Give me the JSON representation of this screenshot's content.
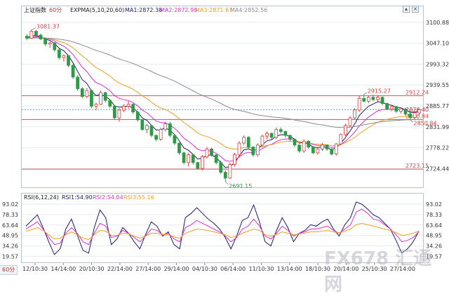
{
  "header": {
    "symbol": "上证指数",
    "period": "60分",
    "indicator": "EXPMA(5,10,20,60)",
    "ma1": "MA1:2872.38",
    "ma2": "MA2:2872.98",
    "ma3": "MA3:2871.67",
    "ma4": "MA4:2852.56"
  },
  "rsi_header": {
    "indicator": "RSI(6,12,24)",
    "rsi1": "RSI1:54.90",
    "rsi2": "RSI2:54.04",
    "rsi3": "RSI3:55.16"
  },
  "period_button": "60分",
  "watermark": "FX678 汇通网",
  "colors": {
    "up": "#e03c3c",
    "down": "#2f9a46",
    "ma1": "#1a1a6e",
    "ma2": "#e02fd0",
    "ma3": "#f0a020",
    "ma4": "#8c8c8c",
    "hline": "#e04848",
    "current": "#5a9bd8"
  },
  "chart_data": [
    {
      "type": "candlestick",
      "title": "上证指数",
      "ylim": [
        2680,
        3115
      ],
      "y_ticks": [
        "3100.88",
        "3047.10",
        "2993.32",
        "2939.55",
        "2885.77",
        "2831.99",
        "2778.22",
        "2724.44"
      ],
      "x_ticks": [
        "12/10:30",
        "14/14:00",
        "20/10:30",
        "22/14:00",
        "27/14:00",
        "29/14:00",
        "04/10:30",
        "06/14:00",
        "11/10:30",
        "13/14:00",
        "18/10:30",
        "20/14:00",
        "25/10:30",
        "27/14:00"
      ],
      "horizontal_lines": [
        {
          "label": "2912.24",
          "value": 2912.24
        },
        {
          "label": "2850.84",
          "value": 2850.84
        },
        {
          "label": "2723.15",
          "value": 2723.15
        }
      ],
      "current_price": {
        "label": "2876.40",
        "value": 2876.4
      },
      "annotations": [
        {
          "label": "3081.37",
          "value": 3081.37
        },
        {
          "label": "2691.15",
          "value": 2691.15
        },
        {
          "label": "2915.27",
          "value": 2915.27
        },
        {
          "label": "2850.84",
          "value": 2850.84
        }
      ],
      "candles": [
        {
          "o": 3065,
          "h": 3070,
          "l": 3055,
          "c": 3060
        },
        {
          "o": 3060,
          "h": 3082,
          "l": 3058,
          "c": 3078
        },
        {
          "o": 3078,
          "h": 3081,
          "l": 3065,
          "c": 3068
        },
        {
          "o": 3068,
          "h": 3072,
          "l": 3055,
          "c": 3058
        },
        {
          "o": 3058,
          "h": 3062,
          "l": 3040,
          "c": 3045
        },
        {
          "o": 3045,
          "h": 3052,
          "l": 3035,
          "c": 3048
        },
        {
          "o": 3048,
          "h": 3050,
          "l": 3025,
          "c": 3030
        },
        {
          "o": 3030,
          "h": 3034,
          "l": 3005,
          "c": 3010
        },
        {
          "o": 3010,
          "h": 3018,
          "l": 3000,
          "c": 3015
        },
        {
          "o": 3015,
          "h": 3017,
          "l": 2985,
          "c": 2990
        },
        {
          "o": 2990,
          "h": 2994,
          "l": 2955,
          "c": 2960
        },
        {
          "o": 2960,
          "h": 2965,
          "l": 2925,
          "c": 2930
        },
        {
          "o": 2930,
          "h": 2934,
          "l": 2905,
          "c": 2910
        },
        {
          "o": 2910,
          "h": 2932,
          "l": 2906,
          "c": 2925
        },
        {
          "o": 2925,
          "h": 2928,
          "l": 2880,
          "c": 2885
        },
        {
          "o": 2885,
          "h": 2894,
          "l": 2875,
          "c": 2890
        },
        {
          "o": 2890,
          "h": 2925,
          "l": 2888,
          "c": 2920
        },
        {
          "o": 2920,
          "h": 2922,
          "l": 2895,
          "c": 2900
        },
        {
          "o": 2900,
          "h": 2902,
          "l": 2880,
          "c": 2885
        },
        {
          "o": 2885,
          "h": 2887,
          "l": 2850,
          "c": 2855
        },
        {
          "o": 2855,
          "h": 2880,
          "l": 2845,
          "c": 2875
        },
        {
          "o": 2875,
          "h": 2890,
          "l": 2870,
          "c": 2885
        },
        {
          "o": 2885,
          "h": 2898,
          "l": 2878,
          "c": 2890
        },
        {
          "o": 2890,
          "h": 2892,
          "l": 2865,
          "c": 2870
        },
        {
          "o": 2870,
          "h": 2872,
          "l": 2845,
          "c": 2850
        },
        {
          "o": 2850,
          "h": 2852,
          "l": 2822,
          "c": 2825
        },
        {
          "o": 2825,
          "h": 2840,
          "l": 2815,
          "c": 2835
        },
        {
          "o": 2835,
          "h": 2837,
          "l": 2805,
          "c": 2810
        },
        {
          "o": 2810,
          "h": 2812,
          "l": 2795,
          "c": 2800
        },
        {
          "o": 2800,
          "h": 2830,
          "l": 2796,
          "c": 2825
        },
        {
          "o": 2825,
          "h": 2845,
          "l": 2820,
          "c": 2840
        },
        {
          "o": 2840,
          "h": 2845,
          "l": 2805,
          "c": 2810
        },
        {
          "o": 2810,
          "h": 2812,
          "l": 2785,
          "c": 2790
        },
        {
          "o": 2790,
          "h": 2792,
          "l": 2760,
          "c": 2765
        },
        {
          "o": 2765,
          "h": 2768,
          "l": 2735,
          "c": 2740
        },
        {
          "o": 2740,
          "h": 2765,
          "l": 2730,
          "c": 2760
        },
        {
          "o": 2760,
          "h": 2762,
          "l": 2735,
          "c": 2740
        },
        {
          "o": 2740,
          "h": 2742,
          "l": 2722,
          "c": 2725
        },
        {
          "o": 2725,
          "h": 2760,
          "l": 2720,
          "c": 2755
        },
        {
          "o": 2755,
          "h": 2780,
          "l": 2750,
          "c": 2775
        },
        {
          "o": 2775,
          "h": 2778,
          "l": 2755,
          "c": 2760
        },
        {
          "o": 2760,
          "h": 2762,
          "l": 2735,
          "c": 2740
        },
        {
          "o": 2740,
          "h": 2745,
          "l": 2710,
          "c": 2715
        },
        {
          "o": 2715,
          "h": 2720,
          "l": 2691,
          "c": 2700
        },
        {
          "o": 2700,
          "h": 2740,
          "l": 2698,
          "c": 2735
        },
        {
          "o": 2735,
          "h": 2765,
          "l": 2730,
          "c": 2760
        },
        {
          "o": 2760,
          "h": 2795,
          "l": 2755,
          "c": 2790
        },
        {
          "o": 2790,
          "h": 2810,
          "l": 2785,
          "c": 2805
        },
        {
          "o": 2805,
          "h": 2808,
          "l": 2775,
          "c": 2780
        },
        {
          "o": 2780,
          "h": 2782,
          "l": 2755,
          "c": 2760
        },
        {
          "o": 2760,
          "h": 2790,
          "l": 2755,
          "c": 2785
        },
        {
          "o": 2785,
          "h": 2812,
          "l": 2780,
          "c": 2808
        },
        {
          "o": 2808,
          "h": 2820,
          "l": 2800,
          "c": 2815
        },
        {
          "o": 2815,
          "h": 2818,
          "l": 2800,
          "c": 2805
        },
        {
          "o": 2805,
          "h": 2830,
          "l": 2800,
          "c": 2825
        },
        {
          "o": 2825,
          "h": 2830,
          "l": 2815,
          "c": 2820
        },
        {
          "o": 2820,
          "h": 2822,
          "l": 2805,
          "c": 2810
        },
        {
          "o": 2810,
          "h": 2812,
          "l": 2795,
          "c": 2800
        },
        {
          "o": 2800,
          "h": 2802,
          "l": 2780,
          "c": 2785
        },
        {
          "o": 2785,
          "h": 2787,
          "l": 2765,
          "c": 2770
        },
        {
          "o": 2770,
          "h": 2800,
          "l": 2765,
          "c": 2795
        },
        {
          "o": 2795,
          "h": 2798,
          "l": 2775,
          "c": 2780
        },
        {
          "o": 2780,
          "h": 2782,
          "l": 2762,
          "c": 2765
        },
        {
          "o": 2765,
          "h": 2780,
          "l": 2760,
          "c": 2775
        },
        {
          "o": 2775,
          "h": 2790,
          "l": 2770,
          "c": 2785
        },
        {
          "o": 2785,
          "h": 2787,
          "l": 2770,
          "c": 2775
        },
        {
          "o": 2775,
          "h": 2777,
          "l": 2758,
          "c": 2762
        },
        {
          "o": 2762,
          "h": 2790,
          "l": 2758,
          "c": 2788
        },
        {
          "o": 2788,
          "h": 2815,
          "l": 2785,
          "c": 2812
        },
        {
          "o": 2812,
          "h": 2840,
          "l": 2808,
          "c": 2835
        },
        {
          "o": 2835,
          "h": 2860,
          "l": 2830,
          "c": 2855
        },
        {
          "o": 2855,
          "h": 2880,
          "l": 2850,
          "c": 2875
        },
        {
          "o": 2875,
          "h": 2912,
          "l": 2870,
          "c": 2905
        },
        {
          "o": 2905,
          "h": 2915,
          "l": 2895,
          "c": 2898
        },
        {
          "o": 2898,
          "h": 2912,
          "l": 2893,
          "c": 2908
        },
        {
          "o": 2908,
          "h": 2915,
          "l": 2898,
          "c": 2902
        },
        {
          "o": 2902,
          "h": 2913,
          "l": 2896,
          "c": 2908
        },
        {
          "o": 2908,
          "h": 2910,
          "l": 2888,
          "c": 2892
        },
        {
          "o": 2892,
          "h": 2894,
          "l": 2875,
          "c": 2878
        },
        {
          "o": 2878,
          "h": 2888,
          "l": 2872,
          "c": 2884
        },
        {
          "o": 2884,
          "h": 2886,
          "l": 2868,
          "c": 2872
        },
        {
          "o": 2872,
          "h": 2882,
          "l": 2866,
          "c": 2878
        },
        {
          "o": 2878,
          "h": 2880,
          "l": 2860,
          "c": 2865
        },
        {
          "o": 2865,
          "h": 2874,
          "l": 2852,
          "c": 2856
        },
        {
          "o": 2856,
          "h": 2872,
          "l": 2851,
          "c": 2868
        },
        {
          "o": 2868,
          "h": 2880,
          "l": 2862,
          "c": 2876
        }
      ],
      "series": [
        {
          "name": "MA1",
          "color": "#1a1a6e"
        },
        {
          "name": "MA2",
          "color": "#e02fd0"
        },
        {
          "name": "MA3",
          "color": "#f0a020"
        },
        {
          "name": "MA4",
          "color": "#8c8c8c"
        }
      ]
    },
    {
      "type": "line",
      "title": "RSI(6,12,24)",
      "ylim": [
        12,
        98
      ],
      "y_ticks": [
        "93.02",
        "78.33",
        "63.64",
        "48.95",
        "34.26",
        "19.57"
      ],
      "series": [
        {
          "name": "RSI1",
          "values": [
            62,
            70,
            78,
            60,
            40,
            22,
            30,
            58,
            72,
            50,
            28,
            24,
            60,
            85,
            74,
            36,
            44,
            60,
            52,
            40,
            30,
            50,
            68,
            62,
            48,
            54,
            36,
            30,
            74,
            80,
            88,
            80,
            72,
            66,
            58,
            46,
            30,
            48,
            70,
            74,
            92,
            68,
            40,
            34,
            56,
            74,
            60,
            40,
            52,
            56,
            64,
            62,
            68,
            72,
            58,
            48,
            64,
            74,
            96,
            93,
            86,
            78,
            74,
            66,
            58,
            42,
            24,
            30,
            40,
            55
          ]
        },
        {
          "name": "RSI2",
          "values": [
            58,
            63,
            68,
            58,
            46,
            36,
            38,
            52,
            60,
            52,
            40,
            36,
            52,
            66,
            62,
            46,
            48,
            56,
            52,
            46,
            40,
            48,
            58,
            56,
            50,
            52,
            44,
            40,
            60,
            64,
            70,
            66,
            62,
            58,
            54,
            48,
            40,
            46,
            58,
            62,
            72,
            62,
            48,
            44,
            52,
            62,
            56,
            48,
            52,
            54,
            58,
            58,
            60,
            62,
            56,
            52,
            58,
            64,
            82,
            86,
            80,
            72,
            70,
            64,
            58,
            50,
            40,
            42,
            46,
            54
          ]
        },
        {
          "name": "RSI3",
          "values": [
            55,
            57,
            60,
            56,
            50,
            44,
            45,
            50,
            54,
            50,
            45,
            43,
            50,
            56,
            55,
            49,
            49,
            52,
            51,
            48,
            45,
            48,
            52,
            52,
            50,
            50,
            47,
            45,
            52,
            55,
            58,
            57,
            56,
            54,
            52,
            50,
            46,
            48,
            52,
            55,
            58,
            56,
            50,
            48,
            50,
            54,
            52,
            50,
            51,
            52,
            54,
            54,
            55,
            56,
            54,
            52,
            55,
            58,
            64,
            66,
            64,
            62,
            60,
            58,
            56,
            53,
            49,
            50,
            52,
            55
          ]
        }
      ]
    }
  ]
}
